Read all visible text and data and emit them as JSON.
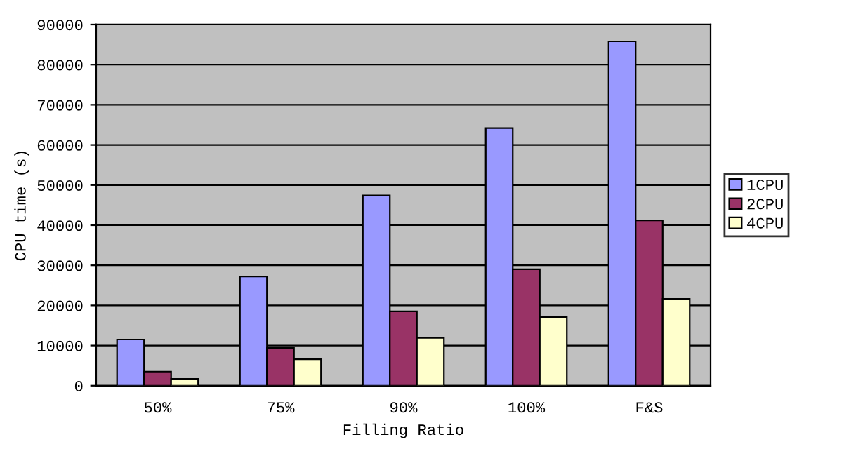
{
  "chart_data": {
    "type": "bar",
    "xlabel": "Filling Ratio",
    "ylabel": "CPU time (s)",
    "categories": [
      "50%",
      "75%",
      "90%",
      "100%",
      "F&S"
    ],
    "series": [
      {
        "name": "1CPU",
        "color": "#9999ff",
        "values": [
          11500,
          27200,
          47400,
          64200,
          85800
        ]
      },
      {
        "name": "2CPU",
        "color": "#993366",
        "values": [
          3500,
          9400,
          18500,
          29000,
          41200
        ]
      },
      {
        "name": "4CPU",
        "color": "#ffffcc",
        "values": [
          1700,
          6600,
          11900,
          17100,
          21600
        ]
      }
    ],
    "ylim": [
      0,
      90000
    ],
    "yticks": [
      0,
      10000,
      20000,
      30000,
      40000,
      50000,
      60000,
      70000,
      80000,
      90000
    ],
    "grid": "y",
    "legend": "right"
  }
}
